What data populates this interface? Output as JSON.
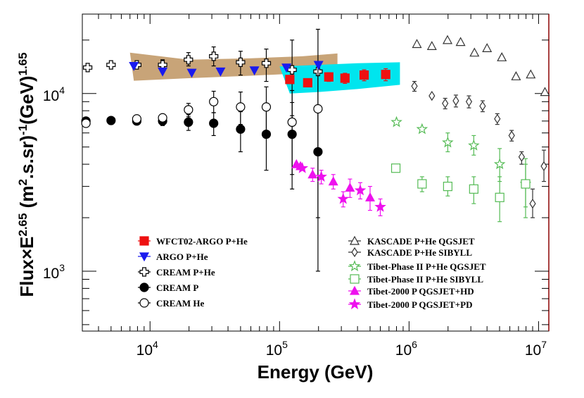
{
  "chart_data": {
    "type": "scatter",
    "title": "",
    "xlabel": "Energy (GeV)",
    "ylabel": "Flux×E^{2.65} (m^{2}.s.sr)^{-1}(GeV)^{1.65}",
    "ylabel_parts": {
      "a": "Flux×E",
      "a_sup": "2.65",
      "b": " (m",
      "b_sup": "2",
      "c": ".s.sr)",
      "c_sup": "-1",
      "d": "(GeV)",
      "d_sup": "1.65"
    },
    "xscale": "log",
    "yscale": "log",
    "xlim": [
      3000,
      12000000
    ],
    "ylim": [
      460,
      28000
    ],
    "x_tick_labels": [
      {
        "value": 10000,
        "base": "10",
        "exp": "4"
      },
      {
        "value": 100000,
        "base": "10",
        "exp": "5"
      },
      {
        "value": 1000000,
        "base": "10",
        "exp": "6"
      },
      {
        "value": 10000000,
        "base": "10",
        "exp": "7"
      }
    ],
    "y_tick_labels": [
      {
        "value": 1000,
        "base": "10",
        "exp": "3"
      },
      {
        "value": 10000,
        "base": "10",
        "exp": "4"
      }
    ],
    "bands": [
      {
        "name": "ARGO P+He systematic band",
        "color": "#c8a478",
        "upper": [
          [
            7000,
            17000
          ],
          [
            20000,
            15500
          ],
          [
            60000,
            15800
          ],
          [
            150000,
            16200
          ],
          [
            280000,
            16800
          ]
        ],
        "lower": [
          [
            280000,
            13500
          ],
          [
            150000,
            13000
          ],
          [
            60000,
            12600
          ],
          [
            20000,
            12200
          ],
          [
            7500,
            11800
          ]
        ]
      },
      {
        "name": "WFCT02-ARGO P+He systematic band",
        "color": "#00e5ee",
        "upper": [
          [
            100000,
            14200
          ],
          [
            200000,
            14500
          ],
          [
            400000,
            14800
          ],
          [
            850000,
            15000
          ]
        ],
        "lower": [
          [
            850000,
            11200
          ],
          [
            400000,
            10600
          ],
          [
            200000,
            10200
          ],
          [
            120000,
            10000
          ]
        ]
      }
    ],
    "series": [
      {
        "name": "WFCT02-ARGO P+He",
        "marker": "square-filled",
        "color": "#ee1111",
        "points": [
          {
            "x": 120000,
            "y": 12000,
            "lo": 11500,
            "hi": 12500
          },
          {
            "x": 165000,
            "y": 11500,
            "lo": 11000,
            "hi": 12000
          },
          {
            "x": 240000,
            "y": 12400,
            "lo": 11700,
            "hi": 13100
          },
          {
            "x": 320000,
            "y": 12200,
            "lo": 11400,
            "hi": 13000
          },
          {
            "x": 450000,
            "y": 12700,
            "lo": 11800,
            "hi": 13600
          },
          {
            "x": 660000,
            "y": 12800,
            "lo": 11800,
            "hi": 13800
          }
        ]
      },
      {
        "name": "ARGO P+He",
        "marker": "triangle-down-filled",
        "color": "#1a1aee",
        "points": [
          {
            "x": 7500,
            "y": 14300
          },
          {
            "x": 12500,
            "y": 13300
          },
          {
            "x": 21000,
            "y": 13100
          },
          {
            "x": 35000,
            "y": 13300
          },
          {
            "x": 64000,
            "y": 13500
          },
          {
            "x": 113000,
            "y": 14000
          },
          {
            "x": 200000,
            "y": 14500
          }
        ]
      },
      {
        "name": "CREAM P+He",
        "marker": "cross-open",
        "color": "#000000",
        "points": [
          {
            "x": 3300,
            "y": 14000
          },
          {
            "x": 5000,
            "y": 14500
          },
          {
            "x": 7900,
            "y": 14500
          },
          {
            "x": 12500,
            "y": 14500,
            "lo": 13300,
            "hi": 15500
          },
          {
            "x": 19800,
            "y": 15500,
            "lo": 14300,
            "hi": 17000
          },
          {
            "x": 31000,
            "y": 16200,
            "lo": 14300,
            "hi": 18300
          },
          {
            "x": 50000,
            "y": 15000,
            "lo": 12700,
            "hi": 17300
          },
          {
            "x": 79000,
            "y": 14800,
            "lo": 11700,
            "hi": 17800
          },
          {
            "x": 125000,
            "y": 13600,
            "lo": 7500,
            "hi": 20000
          },
          {
            "x": 198000,
            "y": 13300,
            "lo": 4500,
            "hi": 23000
          }
        ]
      },
      {
        "name": "CREAM P",
        "marker": "circle-filled",
        "color": "#000000",
        "points": [
          {
            "x": 3200,
            "y": 7000
          },
          {
            "x": 5000,
            "y": 7050
          },
          {
            "x": 7900,
            "y": 7000,
            "lo": 6700,
            "hi": 7400
          },
          {
            "x": 12500,
            "y": 7000,
            "lo": 6600,
            "hi": 7400
          },
          {
            "x": 19800,
            "y": 6900,
            "lo": 6200,
            "hi": 7600
          },
          {
            "x": 31000,
            "y": 6800,
            "lo": 5800,
            "hi": 7800
          },
          {
            "x": 50000,
            "y": 6300,
            "lo": 4700,
            "hi": 7900
          },
          {
            "x": 79000,
            "y": 5900,
            "lo": 3700,
            "hi": 8100
          },
          {
            "x": 125000,
            "y": 5900,
            "lo": 2900,
            "hi": 8900
          },
          {
            "x": 198000,
            "y": 4700,
            "lo": 1000,
            "hi": 8400
          }
        ]
      },
      {
        "name": "CREAM He",
        "marker": "circle-open",
        "color": "#000000",
        "points": [
          {
            "x": 3200,
            "y": 6800
          },
          {
            "x": 7900,
            "y": 7200
          },
          {
            "x": 12500,
            "y": 7300,
            "lo": 6900,
            "hi": 7600
          },
          {
            "x": 19800,
            "y": 8100,
            "lo": 7400,
            "hi": 8800
          },
          {
            "x": 31000,
            "y": 9000,
            "lo": 7800,
            "hi": 10300
          },
          {
            "x": 50000,
            "y": 8400,
            "lo": 6700,
            "hi": 10200
          },
          {
            "x": 79000,
            "y": 8400,
            "lo": 5900,
            "hi": 10900
          },
          {
            "x": 125000,
            "y": 6900,
            "lo": 3500,
            "hi": 10400
          },
          {
            "x": 198000,
            "y": 8200,
            "lo": 2000,
            "hi": 14500
          }
        ]
      },
      {
        "name": "KASCADE P+He QGSJET",
        "marker": "triangle-up-open",
        "color": "#333333",
        "points": [
          {
            "x": 1150000,
            "y": 19000
          },
          {
            "x": 1500000,
            "y": 18500
          },
          {
            "x": 1980000,
            "y": 20000
          },
          {
            "x": 2500000,
            "y": 19500
          },
          {
            "x": 3200000,
            "y": 17000
          },
          {
            "x": 4000000,
            "y": 18000
          },
          {
            "x": 5200000,
            "y": 16000
          },
          {
            "x": 6700000,
            "y": 12500
          },
          {
            "x": 8700000,
            "y": 12800
          },
          {
            "x": 11200000,
            "y": 10200
          }
        ]
      },
      {
        "name": "KASCADE P+He SIBYLL",
        "marker": "diamond-open",
        "color": "#333333",
        "points": [
          {
            "x": 1100000,
            "y": 11000,
            "lo": 10300,
            "hi": 11700
          },
          {
            "x": 1500000,
            "y": 9700
          },
          {
            "x": 1900000,
            "y": 8800,
            "lo": 8200,
            "hi": 9400
          },
          {
            "x": 2300000,
            "y": 9100,
            "lo": 8400,
            "hi": 9800
          },
          {
            "x": 2900000,
            "y": 9000,
            "lo": 8300,
            "hi": 9700
          },
          {
            "x": 3700000,
            "y": 8500,
            "lo": 7900,
            "hi": 9100
          },
          {
            "x": 4800000,
            "y": 7200,
            "lo": 6700,
            "hi": 7700
          },
          {
            "x": 6200000,
            "y": 5800,
            "lo": 5400,
            "hi": 6200
          },
          {
            "x": 7400000,
            "y": 4400,
            "lo": 4000,
            "hi": 4700
          },
          {
            "x": 9000000,
            "y": 2400,
            "lo": 2000,
            "hi": 2900
          },
          {
            "x": 11000000,
            "y": 3900,
            "lo": 3200,
            "hi": 4800
          }
        ]
      },
      {
        "name": "Tibet-Phase II P+He QGSJET",
        "marker": "star-open",
        "color": "#55bb55",
        "points": [
          {
            "x": 800000,
            "y": 6900
          },
          {
            "x": 1260000,
            "y": 6300
          },
          {
            "x": 1990000,
            "y": 5300,
            "lo": 4700,
            "hi": 6000
          },
          {
            "x": 3160000,
            "y": 5100,
            "lo": 4500,
            "hi": 5800
          },
          {
            "x": 5010000,
            "y": 4000,
            "lo": 3200,
            "hi": 4900
          },
          {
            "x": 7940000,
            "y": 3100,
            "lo": 2300,
            "hi": 4000
          }
        ]
      },
      {
        "name": "Tibet-Phase II P+He SIBYLL",
        "marker": "square-open",
        "color": "#55bb55",
        "points": [
          {
            "x": 790000,
            "y": 3800
          },
          {
            "x": 1260000,
            "y": 3100,
            "lo": 2800,
            "hi": 3400
          },
          {
            "x": 1990000,
            "y": 3000,
            "lo": 2650,
            "hi": 3400
          },
          {
            "x": 3160000,
            "y": 2900,
            "lo": 2400,
            "hi": 3400
          },
          {
            "x": 5010000,
            "y": 2600,
            "lo": 1900,
            "hi": 3400
          },
          {
            "x": 7940000,
            "y": 3100,
            "lo": 2000,
            "hi": 4300
          }
        ]
      },
      {
        "name": "Tibet-2000 P QGSJET+HD",
        "marker": "triangle-up-filled",
        "color": "#ee11ee",
        "points": [
          {
            "x": 135000,
            "y": 4000
          },
          {
            "x": 145000,
            "y": 3900
          },
          {
            "x": 180000,
            "y": 3500,
            "lo": 3200,
            "hi": 3800
          },
          {
            "x": 260000,
            "y": 3200,
            "lo": 2900,
            "hi": 3500
          },
          {
            "x": 350000,
            "y": 2950,
            "lo": 2600,
            "hi": 3300
          },
          {
            "x": 500000,
            "y": 2600,
            "lo": 2200,
            "hi": 3000
          }
        ]
      },
      {
        "name": "Tibet-2000 P QGSJET+PD",
        "marker": "star-filled",
        "color": "#ee11ee",
        "points": [
          {
            "x": 150000,
            "y": 3800
          },
          {
            "x": 210000,
            "y": 3400,
            "lo": 3100,
            "hi": 3700
          },
          {
            "x": 310000,
            "y": 2550,
            "lo": 2300,
            "hi": 2800
          },
          {
            "x": 420000,
            "y": 2850,
            "lo": 2550,
            "hi": 3150
          },
          {
            "x": 600000,
            "y": 2300,
            "lo": 2050,
            "hi": 2550
          }
        ]
      }
    ],
    "legend_left": [
      "WFCT02-ARGO P+He",
      "ARGO P+He",
      "CREAM P+He",
      "CREAM P",
      "CREAM He"
    ],
    "legend_right": [
      "KASCADE P+He QGSJET",
      "KASCADE P+He SIBYLL",
      "Tibet-Phase II P+He QGSJET",
      "Tibet-Phase II P+He SIBYLL",
      "Tibet-2000 P QGSJET+HD",
      "Tibet-2000 P QGSJET+PD"
    ]
  }
}
